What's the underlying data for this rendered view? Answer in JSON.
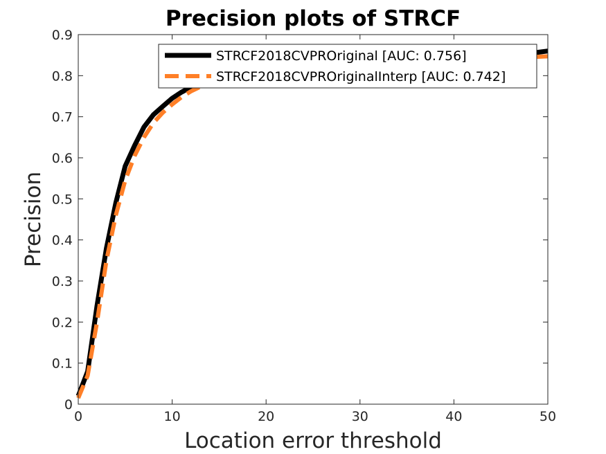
{
  "chart_data": {
    "type": "line",
    "title": "Precision plots of STRCF",
    "xlabel": "Location error threshold",
    "ylabel": "Precision",
    "xlim": [
      0,
      50
    ],
    "ylim": [
      0,
      0.9
    ],
    "xticks": [
      "0",
      "10",
      "20",
      "30",
      "40",
      "50"
    ],
    "yticks": [
      "0",
      "0.1",
      "0.2",
      "0.3",
      "0.4",
      "0.5",
      "0.6",
      "0.7",
      "0.8",
      "0.9"
    ],
    "grid": false,
    "legend_position": "top-right",
    "series": [
      {
        "name": "STRCF2018CVPROriginal [AUC: 0.756]",
        "color": "#000000",
        "style": "solid",
        "x": [
          0,
          1,
          2,
          3,
          4,
          5,
          6,
          7,
          8,
          9,
          10,
          11,
          12,
          13,
          14,
          15,
          16,
          17,
          18,
          19,
          20,
          21,
          22,
          23,
          24,
          25,
          26,
          27,
          28,
          29,
          30,
          31,
          32,
          33,
          34,
          35,
          36,
          37,
          38,
          39,
          40,
          41,
          42,
          43,
          44,
          45,
          46,
          47,
          48,
          49,
          50
        ],
        "y": [
          0.02,
          0.08,
          0.24,
          0.38,
          0.49,
          0.58,
          0.63,
          0.675,
          0.705,
          0.725,
          0.745,
          0.76,
          0.772,
          0.782,
          0.79,
          0.796,
          0.801,
          0.806,
          0.81,
          0.813,
          0.816,
          0.819,
          0.821,
          0.823,
          0.825,
          0.827,
          0.829,
          0.831,
          0.833,
          0.835,
          0.836,
          0.837,
          0.838,
          0.839,
          0.84,
          0.841,
          0.842,
          0.843,
          0.844,
          0.845,
          0.846,
          0.847,
          0.848,
          0.849,
          0.85,
          0.851,
          0.852,
          0.853,
          0.855,
          0.857,
          0.86
        ]
      },
      {
        "name": "STRCF2018CVPROriginalInterp [AUC: 0.742]",
        "color": "#ff7f27",
        "style": "dashed",
        "x": [
          0,
          1,
          2,
          3,
          4,
          5,
          6,
          7,
          8,
          9,
          10,
          11,
          12,
          13,
          14,
          15,
          16,
          17,
          18,
          19,
          20,
          21,
          22,
          23,
          24,
          25,
          26,
          27,
          28,
          29,
          30,
          31,
          32,
          33,
          34,
          35,
          36,
          37,
          38,
          39,
          40,
          41,
          42,
          43,
          44,
          45,
          46,
          47,
          48,
          49,
          50
        ],
        "y": [
          0.015,
          0.07,
          0.2,
          0.35,
          0.46,
          0.545,
          0.605,
          0.65,
          0.685,
          0.71,
          0.73,
          0.748,
          0.762,
          0.773,
          0.781,
          0.787,
          0.793,
          0.798,
          0.802,
          0.806,
          0.809,
          0.812,
          0.814,
          0.816,
          0.818,
          0.82,
          0.822,
          0.824,
          0.825,
          0.826,
          0.827,
          0.828,
          0.829,
          0.83,
          0.831,
          0.832,
          0.833,
          0.834,
          0.835,
          0.836,
          0.837,
          0.838,
          0.839,
          0.84,
          0.841,
          0.842,
          0.843,
          0.844,
          0.845,
          0.846,
          0.847
        ]
      }
    ]
  }
}
